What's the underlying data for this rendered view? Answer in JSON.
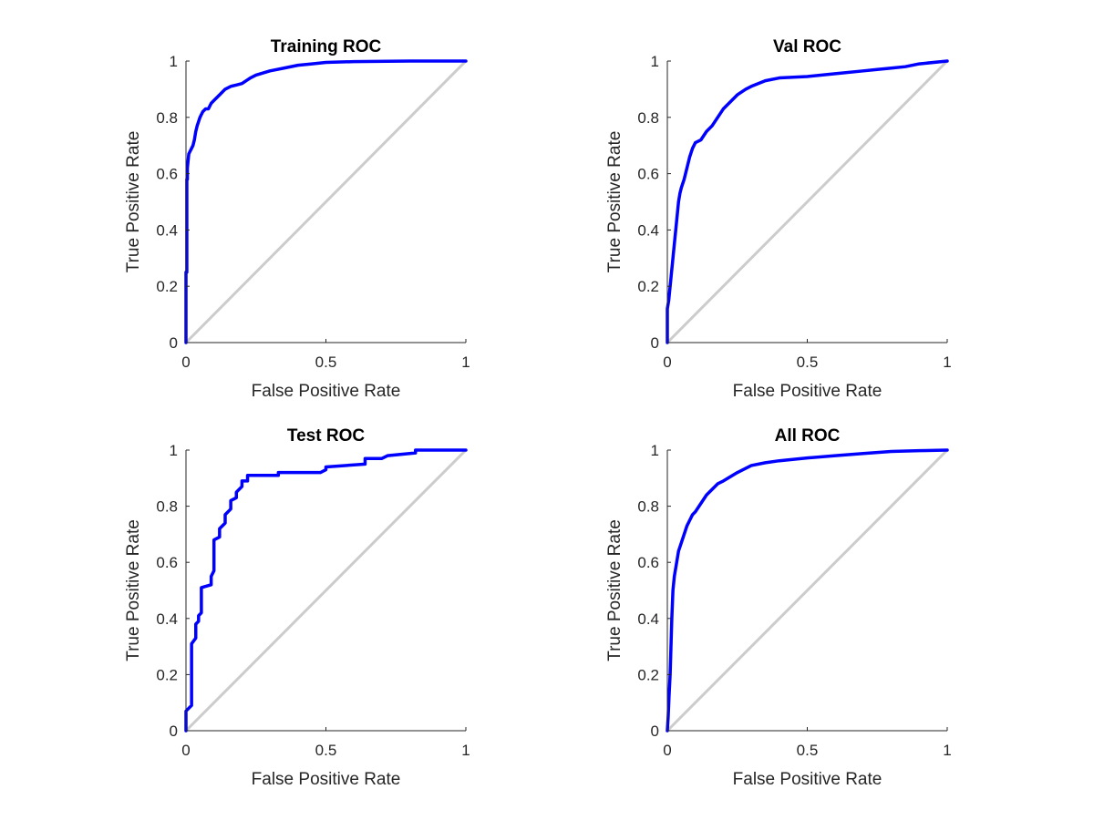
{
  "chart_data": [
    {
      "type": "line",
      "title": "Training ROC",
      "xlabel": "False Positive Rate",
      "ylabel": "True Positive Rate",
      "xlim": [
        0,
        1
      ],
      "ylim": [
        0,
        1
      ],
      "xticks": [
        "0",
        "0.5",
        "1"
      ],
      "yticks": [
        "0",
        "0.2",
        "0.4",
        "0.6",
        "0.8",
        "1"
      ],
      "grid": false,
      "series": [
        {
          "color": "#0000ff",
          "x": [
            0,
            0,
            0.003,
            0.003,
            0.005,
            0.005,
            0.008,
            0.01,
            0.015,
            0.02,
            0.025,
            0.03,
            0.035,
            0.04,
            0.05,
            0.06,
            0.07,
            0.08,
            0.09,
            0.1,
            0.12,
            0.14,
            0.16,
            0.18,
            0.2,
            0.23,
            0.25,
            0.3,
            0.35,
            0.4,
            0.45,
            0.5,
            0.6,
            0.8,
            1.0
          ],
          "y": [
            0,
            0.25,
            0.25,
            0.58,
            0.58,
            0.62,
            0.65,
            0.67,
            0.68,
            0.69,
            0.7,
            0.72,
            0.75,
            0.77,
            0.8,
            0.82,
            0.83,
            0.83,
            0.85,
            0.86,
            0.88,
            0.9,
            0.91,
            0.915,
            0.92,
            0.94,
            0.95,
            0.965,
            0.975,
            0.985,
            0.99,
            0.995,
            0.998,
            1.0,
            1.0
          ]
        }
      ],
      "reference_line": {
        "color": "#cccccc",
        "x": [
          0,
          1
        ],
        "y": [
          0,
          1
        ]
      }
    },
    {
      "type": "line",
      "title": "Val ROC",
      "xlabel": "False Positive Rate",
      "ylabel": "True Positive Rate",
      "xlim": [
        0,
        1
      ],
      "ylim": [
        0,
        1
      ],
      "xticks": [
        "0",
        "0.5",
        "1"
      ],
      "yticks": [
        "0",
        "0.2",
        "0.4",
        "0.6",
        "0.8",
        "1"
      ],
      "grid": false,
      "series": [
        {
          "color": "#0000ff",
          "x": [
            0,
            0,
            0.005,
            0.008,
            0.01,
            0.015,
            0.02,
            0.025,
            0.03,
            0.035,
            0.04,
            0.045,
            0.05,
            0.06,
            0.07,
            0.08,
            0.09,
            0.1,
            0.12,
            0.14,
            0.16,
            0.18,
            0.2,
            0.22,
            0.25,
            0.28,
            0.3,
            0.35,
            0.4,
            0.5,
            0.6,
            0.7,
            0.75,
            0.8,
            0.85,
            0.9,
            1.0
          ],
          "y": [
            0,
            0.12,
            0.15,
            0.18,
            0.2,
            0.25,
            0.3,
            0.35,
            0.4,
            0.45,
            0.5,
            0.53,
            0.55,
            0.58,
            0.62,
            0.66,
            0.69,
            0.71,
            0.72,
            0.75,
            0.77,
            0.8,
            0.83,
            0.85,
            0.88,
            0.9,
            0.91,
            0.93,
            0.94,
            0.945,
            0.955,
            0.965,
            0.97,
            0.975,
            0.98,
            0.99,
            1.0
          ]
        }
      ],
      "reference_line": {
        "color": "#cccccc",
        "x": [
          0,
          1
        ],
        "y": [
          0,
          1
        ]
      }
    },
    {
      "type": "line",
      "title": "Test ROC",
      "xlabel": "False Positive Rate",
      "ylabel": "True Positive Rate",
      "xlim": [
        0,
        1
      ],
      "ylim": [
        0,
        1
      ],
      "xticks": [
        "0",
        "0.5",
        "1"
      ],
      "yticks": [
        "0",
        "0.2",
        "0.4",
        "0.6",
        "0.8",
        "1"
      ],
      "grid": false,
      "series": [
        {
          "color": "#0000ff",
          "x": [
            0,
            0,
            0.02,
            0.02,
            0.02,
            0.035,
            0.035,
            0.045,
            0.045,
            0.055,
            0.055,
            0.09,
            0.09,
            0.1,
            0.1,
            0.12,
            0.12,
            0.14,
            0.14,
            0.16,
            0.16,
            0.18,
            0.18,
            0.2,
            0.2,
            0.22,
            0.22,
            0.33,
            0.33,
            0.48,
            0.5,
            0.5,
            0.64,
            0.64,
            0.7,
            0.72,
            0.82,
            0.82,
            1.0
          ],
          "y": [
            0,
            0.07,
            0.09,
            0.2,
            0.31,
            0.33,
            0.38,
            0.39,
            0.41,
            0.42,
            0.51,
            0.52,
            0.55,
            0.57,
            0.68,
            0.69,
            0.72,
            0.74,
            0.77,
            0.79,
            0.82,
            0.83,
            0.85,
            0.87,
            0.89,
            0.89,
            0.91,
            0.91,
            0.92,
            0.92,
            0.93,
            0.94,
            0.95,
            0.97,
            0.97,
            0.98,
            0.99,
            1.0,
            1.0
          ]
        }
      ],
      "reference_line": {
        "color": "#cccccc",
        "x": [
          0,
          1
        ],
        "y": [
          0,
          1
        ]
      }
    },
    {
      "type": "line",
      "title": "All ROC",
      "xlabel": "False Positive Rate",
      "ylabel": "True Positive Rate",
      "xlim": [
        0,
        1
      ],
      "ylim": [
        0,
        1
      ],
      "xticks": [
        "0",
        "0.5",
        "1"
      ],
      "yticks": [
        "0",
        "0.2",
        "0.4",
        "0.6",
        "0.8",
        "1"
      ],
      "grid": false,
      "series": [
        {
          "color": "#0000ff",
          "x": [
            0,
            0.003,
            0.006,
            0.01,
            0.013,
            0.016,
            0.02,
            0.025,
            0.03,
            0.035,
            0.04,
            0.05,
            0.06,
            0.07,
            0.08,
            0.09,
            0.1,
            0.12,
            0.14,
            0.16,
            0.18,
            0.2,
            0.25,
            0.3,
            0.35,
            0.4,
            0.5,
            0.6,
            0.7,
            0.8,
            0.9,
            1.0
          ],
          "y": [
            0,
            0.05,
            0.12,
            0.2,
            0.3,
            0.4,
            0.5,
            0.55,
            0.58,
            0.61,
            0.64,
            0.67,
            0.7,
            0.73,
            0.75,
            0.77,
            0.78,
            0.81,
            0.84,
            0.86,
            0.88,
            0.89,
            0.92,
            0.945,
            0.955,
            0.962,
            0.972,
            0.98,
            0.988,
            0.995,
            0.998,
            1.0
          ]
        }
      ],
      "reference_line": {
        "color": "#cccccc",
        "x": [
          0,
          1
        ],
        "y": [
          0,
          1
        ]
      }
    }
  ]
}
